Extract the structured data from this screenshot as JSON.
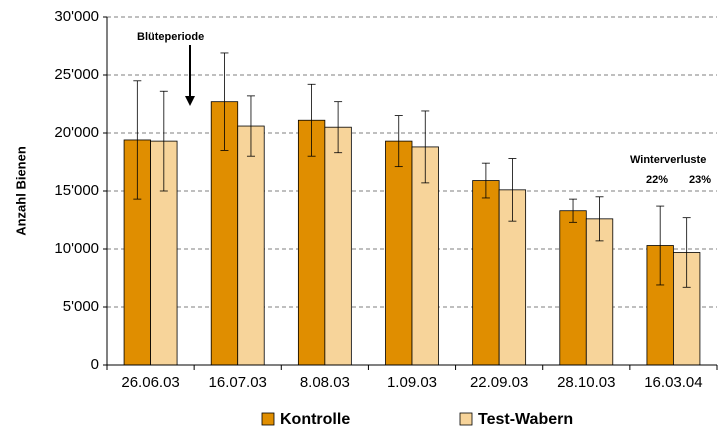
{
  "chart_data": {
    "type": "bar",
    "ylabel": "Anzahl Bienen",
    "categories": [
      "26.06.03",
      "16.07.03",
      "8.08.03",
      "1.09.03",
      "22.09.03",
      "28.10.03",
      "16.03.04"
    ],
    "series": [
      {
        "name": "Kontrolle",
        "color": "#e08e00",
        "values": [
          19400,
          22700,
          21100,
          19300,
          15900,
          13300,
          10300
        ],
        "errors": [
          5100,
          4200,
          3100,
          2200,
          1500,
          1000,
          3400
        ]
      },
      {
        "name": "Test-Wabern",
        "color": "#f7d49a",
        "values": [
          19300,
          20600,
          20500,
          18800,
          15100,
          12600,
          9700
        ],
        "errors": [
          4300,
          2600,
          2200,
          3100,
          2700,
          1900,
          3000
        ]
      }
    ],
    "ylim": [
      0,
      30000
    ],
    "yticks": [
      0,
      {
        "value": 5000,
        "label": "5'000"
      },
      {
        "value": 10000,
        "label": "10'000"
      },
      {
        "value": 15000,
        "label": "15'000"
      },
      {
        "value": 20000,
        "label": "20'000"
      },
      {
        "value": 25000,
        "label": "25'000"
      },
      {
        "value": 30000,
        "label": "30'000"
      }
    ],
    "grid": true,
    "annotations": [
      "Blüteperiode",
      "Winterverluste",
      "22%",
      "23%"
    ]
  }
}
